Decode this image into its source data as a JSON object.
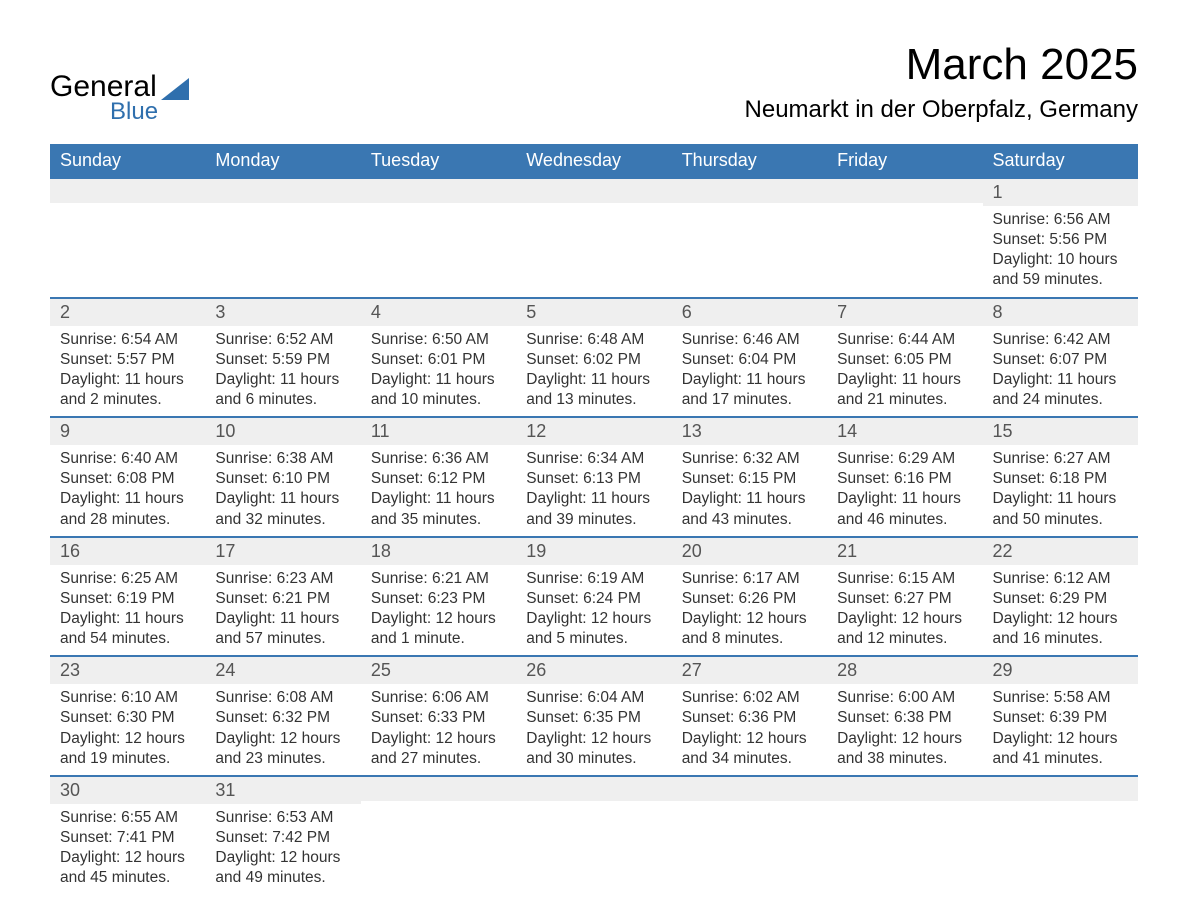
{
  "logo": {
    "line1": "General",
    "line2": "Blue"
  },
  "title": "March 2025",
  "location": "Neumarkt in der Oberpfalz, Germany",
  "colors": {
    "header_bg": "#3a77b2",
    "header_text": "#ffffff",
    "daynum_bg": "#efefef",
    "row_border": "#3a77b2",
    "body_text": "#333333",
    "logo_blue": "#2f6fad"
  },
  "typography": {
    "title_fontsize": 44,
    "location_fontsize": 24,
    "header_fontsize": 18,
    "daynum_fontsize": 18,
    "data_fontsize": 15.5,
    "font_family": "Arial"
  },
  "weekdays": [
    "Sunday",
    "Monday",
    "Tuesday",
    "Wednesday",
    "Thursday",
    "Friday",
    "Saturday"
  ],
  "weeks": [
    [
      null,
      null,
      null,
      null,
      null,
      null,
      {
        "n": "1",
        "sr": "Sunrise: 6:56 AM",
        "ss": "Sunset: 5:56 PM",
        "d1": "Daylight: 10 hours",
        "d2": "and 59 minutes."
      }
    ],
    [
      {
        "n": "2",
        "sr": "Sunrise: 6:54 AM",
        "ss": "Sunset: 5:57 PM",
        "d1": "Daylight: 11 hours",
        "d2": "and 2 minutes."
      },
      {
        "n": "3",
        "sr": "Sunrise: 6:52 AM",
        "ss": "Sunset: 5:59 PM",
        "d1": "Daylight: 11 hours",
        "d2": "and 6 minutes."
      },
      {
        "n": "4",
        "sr": "Sunrise: 6:50 AM",
        "ss": "Sunset: 6:01 PM",
        "d1": "Daylight: 11 hours",
        "d2": "and 10 minutes."
      },
      {
        "n": "5",
        "sr": "Sunrise: 6:48 AM",
        "ss": "Sunset: 6:02 PM",
        "d1": "Daylight: 11 hours",
        "d2": "and 13 minutes."
      },
      {
        "n": "6",
        "sr": "Sunrise: 6:46 AM",
        "ss": "Sunset: 6:04 PM",
        "d1": "Daylight: 11 hours",
        "d2": "and 17 minutes."
      },
      {
        "n": "7",
        "sr": "Sunrise: 6:44 AM",
        "ss": "Sunset: 6:05 PM",
        "d1": "Daylight: 11 hours",
        "d2": "and 21 minutes."
      },
      {
        "n": "8",
        "sr": "Sunrise: 6:42 AM",
        "ss": "Sunset: 6:07 PM",
        "d1": "Daylight: 11 hours",
        "d2": "and 24 minutes."
      }
    ],
    [
      {
        "n": "9",
        "sr": "Sunrise: 6:40 AM",
        "ss": "Sunset: 6:08 PM",
        "d1": "Daylight: 11 hours",
        "d2": "and 28 minutes."
      },
      {
        "n": "10",
        "sr": "Sunrise: 6:38 AM",
        "ss": "Sunset: 6:10 PM",
        "d1": "Daylight: 11 hours",
        "d2": "and 32 minutes."
      },
      {
        "n": "11",
        "sr": "Sunrise: 6:36 AM",
        "ss": "Sunset: 6:12 PM",
        "d1": "Daylight: 11 hours",
        "d2": "and 35 minutes."
      },
      {
        "n": "12",
        "sr": "Sunrise: 6:34 AM",
        "ss": "Sunset: 6:13 PM",
        "d1": "Daylight: 11 hours",
        "d2": "and 39 minutes."
      },
      {
        "n": "13",
        "sr": "Sunrise: 6:32 AM",
        "ss": "Sunset: 6:15 PM",
        "d1": "Daylight: 11 hours",
        "d2": "and 43 minutes."
      },
      {
        "n": "14",
        "sr": "Sunrise: 6:29 AM",
        "ss": "Sunset: 6:16 PM",
        "d1": "Daylight: 11 hours",
        "d2": "and 46 minutes."
      },
      {
        "n": "15",
        "sr": "Sunrise: 6:27 AM",
        "ss": "Sunset: 6:18 PM",
        "d1": "Daylight: 11 hours",
        "d2": "and 50 minutes."
      }
    ],
    [
      {
        "n": "16",
        "sr": "Sunrise: 6:25 AM",
        "ss": "Sunset: 6:19 PM",
        "d1": "Daylight: 11 hours",
        "d2": "and 54 minutes."
      },
      {
        "n": "17",
        "sr": "Sunrise: 6:23 AM",
        "ss": "Sunset: 6:21 PM",
        "d1": "Daylight: 11 hours",
        "d2": "and 57 minutes."
      },
      {
        "n": "18",
        "sr": "Sunrise: 6:21 AM",
        "ss": "Sunset: 6:23 PM",
        "d1": "Daylight: 12 hours",
        "d2": "and 1 minute."
      },
      {
        "n": "19",
        "sr": "Sunrise: 6:19 AM",
        "ss": "Sunset: 6:24 PM",
        "d1": "Daylight: 12 hours",
        "d2": "and 5 minutes."
      },
      {
        "n": "20",
        "sr": "Sunrise: 6:17 AM",
        "ss": "Sunset: 6:26 PM",
        "d1": "Daylight: 12 hours",
        "d2": "and 8 minutes."
      },
      {
        "n": "21",
        "sr": "Sunrise: 6:15 AM",
        "ss": "Sunset: 6:27 PM",
        "d1": "Daylight: 12 hours",
        "d2": "and 12 minutes."
      },
      {
        "n": "22",
        "sr": "Sunrise: 6:12 AM",
        "ss": "Sunset: 6:29 PM",
        "d1": "Daylight: 12 hours",
        "d2": "and 16 minutes."
      }
    ],
    [
      {
        "n": "23",
        "sr": "Sunrise: 6:10 AM",
        "ss": "Sunset: 6:30 PM",
        "d1": "Daylight: 12 hours",
        "d2": "and 19 minutes."
      },
      {
        "n": "24",
        "sr": "Sunrise: 6:08 AM",
        "ss": "Sunset: 6:32 PM",
        "d1": "Daylight: 12 hours",
        "d2": "and 23 minutes."
      },
      {
        "n": "25",
        "sr": "Sunrise: 6:06 AM",
        "ss": "Sunset: 6:33 PM",
        "d1": "Daylight: 12 hours",
        "d2": "and 27 minutes."
      },
      {
        "n": "26",
        "sr": "Sunrise: 6:04 AM",
        "ss": "Sunset: 6:35 PM",
        "d1": "Daylight: 12 hours",
        "d2": "and 30 minutes."
      },
      {
        "n": "27",
        "sr": "Sunrise: 6:02 AM",
        "ss": "Sunset: 6:36 PM",
        "d1": "Daylight: 12 hours",
        "d2": "and 34 minutes."
      },
      {
        "n": "28",
        "sr": "Sunrise: 6:00 AM",
        "ss": "Sunset: 6:38 PM",
        "d1": "Daylight: 12 hours",
        "d2": "and 38 minutes."
      },
      {
        "n": "29",
        "sr": "Sunrise: 5:58 AM",
        "ss": "Sunset: 6:39 PM",
        "d1": "Daylight: 12 hours",
        "d2": "and 41 minutes."
      }
    ],
    [
      {
        "n": "30",
        "sr": "Sunrise: 6:55 AM",
        "ss": "Sunset: 7:41 PM",
        "d1": "Daylight: 12 hours",
        "d2": "and 45 minutes."
      },
      {
        "n": "31",
        "sr": "Sunrise: 6:53 AM",
        "ss": "Sunset: 7:42 PM",
        "d1": "Daylight: 12 hours",
        "d2": "and 49 minutes."
      },
      null,
      null,
      null,
      null,
      null
    ]
  ]
}
